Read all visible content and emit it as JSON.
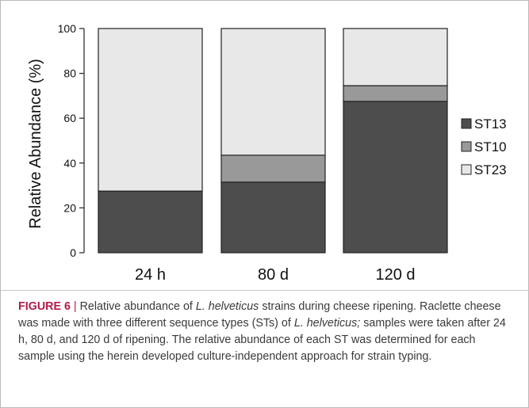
{
  "chart_data": {
    "type": "bar",
    "stacked": true,
    "categories": [
      "24 h",
      "80 d",
      "120 d"
    ],
    "series": [
      {
        "name": "ST13",
        "color": "#4d4d4d",
        "values": [
          27.5,
          31.5,
          67.5
        ]
      },
      {
        "name": "ST10",
        "color": "#999999",
        "values": [
          0,
          12,
          7
        ]
      },
      {
        "name": "ST23",
        "color": "#e8e8e8",
        "values": [
          72.5,
          56.5,
          25.5
        ]
      }
    ],
    "ylabel": "Relative Abundance (%)",
    "xlabel": "",
    "ylim": [
      0,
      100
    ],
    "yticks": [
      "0",
      "20",
      "40",
      "60",
      "80",
      "100"
    ],
    "grid": false,
    "legend_position": "right"
  },
  "caption": {
    "label": "FIGURE 6",
    "separator": " | ",
    "part1": "Relative abundance of ",
    "species1": "L. helveticus",
    "part2": " strains during cheese ripening. Raclette cheese was made with three different sequence types (STs) of ",
    "species2": "L. helveticus;",
    "part3": " samples were taken after 24 h, 80 d, and 120 d of ripening. The relative abundance of each ST was determined for each sample using the herein developed culture-independent approach for strain typing."
  }
}
